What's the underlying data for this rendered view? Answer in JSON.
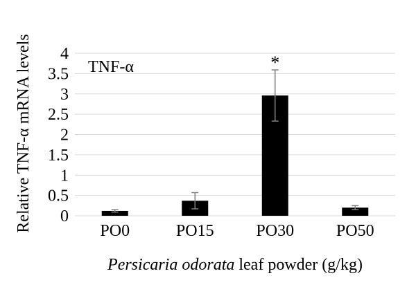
{
  "chart_data": {
    "type": "bar",
    "title": "TNF-α",
    "categories": [
      "PO0",
      "PO15",
      "PO30",
      "PO50"
    ],
    "series": [
      {
        "values": [
          0.12,
          0.37,
          2.96,
          0.2
        ],
        "error": [
          0.03,
          0.2,
          0.63,
          0.05
        ]
      }
    ],
    "annotations": [
      {
        "category": "PO30",
        "text": "*"
      }
    ],
    "xlabel_italic": "Persicaria odorata",
    "xlabel_rest": " leaf powder (g/kg)",
    "ylabel": "Relative TNF-α mRNA levels",
    "ylim": [
      0,
      4
    ],
    "yticks": [
      0,
      0.5,
      1,
      1.5,
      2,
      2.5,
      3,
      3.5,
      4
    ],
    "ytick_labels": [
      "0",
      "0.5",
      "1",
      "1.5",
      "2",
      "2.5",
      "3",
      "3.5",
      "4"
    ],
    "grid": true,
    "bar_color": "#000000",
    "grid_color": "#d9d9d9",
    "error_color": "#7f7f7f"
  }
}
